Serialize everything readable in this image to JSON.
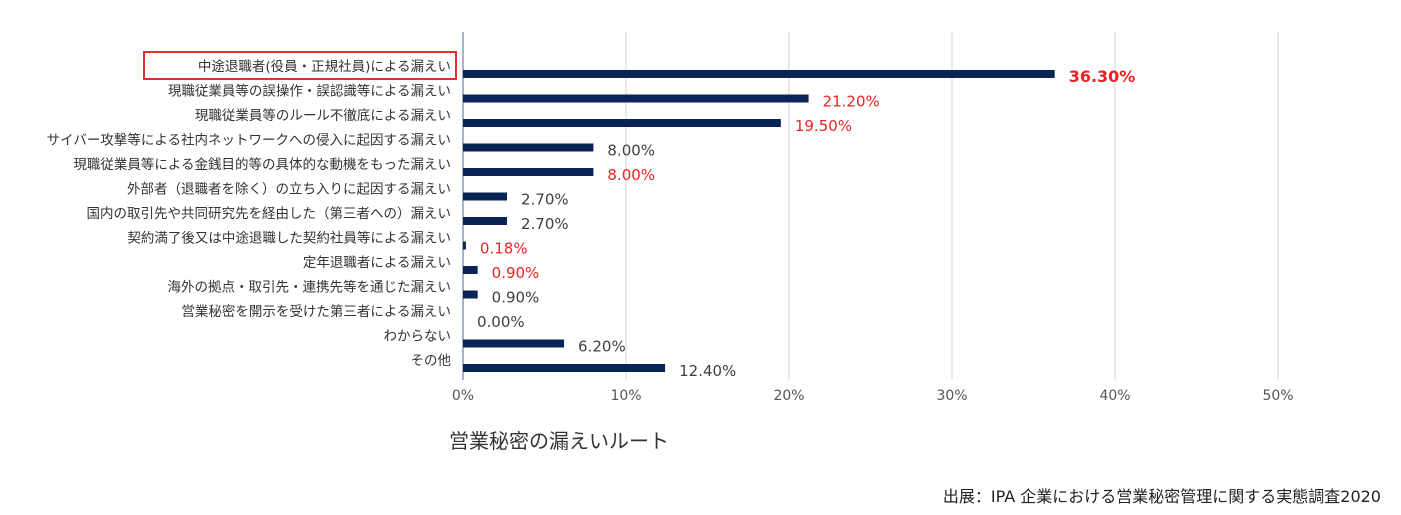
{
  "chart_data": {
    "type": "bar",
    "orientation": "horizontal",
    "xlabel": "営業秘密の漏えいルート",
    "xlim": [
      0,
      50
    ],
    "x_ticks": [
      "0%",
      "10%",
      "20%",
      "30%",
      "40%",
      "50%"
    ],
    "grid": true,
    "categories": [
      "中途退職者(役員・正規社員)による漏えい",
      "現職従業員等の誤操作・誤認識等による漏えい",
      "現職従業員等のルール不徹底による漏えい",
      "サイバー攻撃等による社内ネットワークへの侵入に起因する漏えい",
      "現職従業員等による金銭目的等の具体的な動機をもった漏えい",
      "外部者（退職者を除く）の立ち入りに起因する漏えい",
      "国内の取引先や共同研究先を経由した（第三者への）漏えい",
      "契約満了後又は中途退職した契約社員等による漏えい",
      "定年退職者による漏えい",
      "海外の拠点・取引先・連携先等を通じた漏えい",
      "営業秘密を開示を受けた第三者による漏えい",
      "わからない",
      "その他"
    ],
    "values": [
      36.3,
      21.2,
      19.5,
      8.0,
      8.0,
      2.7,
      2.7,
      0.18,
      0.9,
      0.9,
      0.0,
      6.2,
      12.4
    ],
    "value_labels": [
      "36.30%",
      "21.20%",
      "19.50%",
      "8.00%",
      "8.00%",
      "2.70%",
      "2.70%",
      "0.18%",
      "0.90%",
      "0.90%",
      "0.00%",
      "6.20%",
      "12.40%"
    ],
    "label_highlight": [
      true,
      true,
      true,
      false,
      true,
      false,
      false,
      true,
      true,
      false,
      false,
      false,
      false
    ],
    "highlighted_category_index": 0,
    "colors": {
      "bar": "#0b2456",
      "label_normal": "#404040",
      "label_highlight": "#ee2222",
      "box": "#e03030",
      "grid": "#d4d4d4",
      "axis": "#8a9ab8"
    }
  },
  "source_note": "出展：IPA  企業における営業秘密管理に関する実態調査2020"
}
